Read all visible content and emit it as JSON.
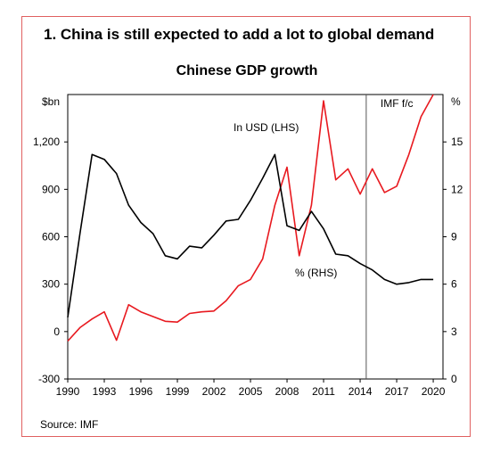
{
  "heading": "1. China is still expected to add a lot to global demand",
  "source": "Source: IMF",
  "chart_data": {
    "type": "line",
    "title": "Chinese GDP growth",
    "y_left_unit": "$bn",
    "y_right_unit": "%",
    "ylim_left": [
      -300,
      1500
    ],
    "ylim_right": [
      0,
      18
    ],
    "y_left_ticks": [
      "-300",
      "0",
      "300",
      "600",
      "900",
      "1,200"
    ],
    "y_right_ticks": [
      "0",
      "3",
      "6",
      "9",
      "12",
      "15"
    ],
    "x_ticks": [
      "1990",
      "1993",
      "1996",
      "1999",
      "2002",
      "2005",
      "2008",
      "2011",
      "2014",
      "2017",
      "2020"
    ],
    "forecast_label": "IMF f/c",
    "forecast_start": 2014.5,
    "colors": {
      "usd": "#e8191f",
      "pct": "#000000",
      "frame": "#e06060"
    },
    "series": [
      {
        "name": "In USD (LHS)",
        "axis": "left",
        "x": [
          1990,
          1991,
          1992,
          1993,
          1994,
          1995,
          1996,
          1997,
          1998,
          1999,
          2000,
          2001,
          2002,
          2003,
          2004,
          2005,
          2006,
          2007,
          2008,
          2009,
          2010,
          2011,
          2012,
          2013,
          2014,
          2015,
          2016,
          2017,
          2018,
          2019,
          2020
        ],
        "values": [
          -60,
          25,
          80,
          125,
          -55,
          170,
          125,
          95,
          65,
          60,
          115,
          125,
          130,
          195,
          290,
          330,
          460,
          800,
          1040,
          480,
          800,
          1460,
          960,
          1030,
          870,
          1030,
          880,
          920,
          1120,
          1360,
          1500
        ]
      },
      {
        "name": "% (RHS)",
        "axis": "right",
        "x": [
          1990,
          1991,
          1992,
          1993,
          1994,
          1995,
          1996,
          1997,
          1998,
          1999,
          2000,
          2001,
          2002,
          2003,
          2004,
          2005,
          2006,
          2007,
          2008,
          2009,
          2010,
          2011,
          2012,
          2013,
          2014,
          2015,
          2016,
          2017,
          2018,
          2019,
          2020
        ],
        "values": [
          3.9,
          9.2,
          14.2,
          13.9,
          13.0,
          11.0,
          9.9,
          9.2,
          7.8,
          7.6,
          8.4,
          8.3,
          9.1,
          10.0,
          10.1,
          11.3,
          12.7,
          14.2,
          9.7,
          9.4,
          10.6,
          9.5,
          7.9,
          7.8,
          7.3,
          6.9,
          6.3,
          6.0,
          6.1,
          6.3,
          6.3
        ]
      }
    ]
  }
}
